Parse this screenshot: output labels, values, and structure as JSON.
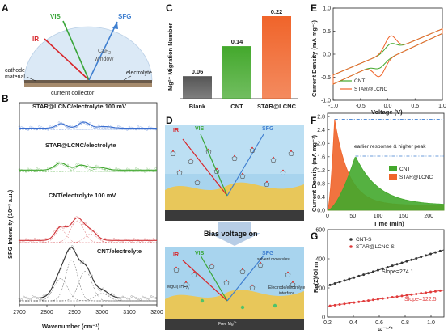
{
  "panels": {
    "A": {
      "letter": "A",
      "beam_labels": {
        "ir": "IR",
        "vis": "VIS",
        "sfg": "SFG"
      },
      "window_label_1": "CaF",
      "window_label_sub": "2",
      "window_label_2": "window",
      "cathode_label_1": "cathode",
      "cathode_label_2": "material",
      "electrolyte_label": "electrolyte",
      "collector_label": "current collector",
      "colors": {
        "ir": "#d8262b",
        "vis": "#3aa63a",
        "sfg": "#3f7fd0",
        "dome": "#dbe9f6"
      }
    },
    "B": {
      "letter": "B"
    },
    "C": {
      "letter": "C"
    },
    "D": {
      "letter": "D",
      "beam_labels": {
        "ir": "IR",
        "vis": "VIS",
        "sfg": "SFG"
      },
      "arrow_label": "Bias voltage on",
      "solvent_label": "solvent molecules",
      "species_label": "MgCl(THF)",
      "species_sub": "5",
      "species_sup": "+",
      "interface_label_1": "Electrode/electrolyte",
      "interface_label_2": "interface",
      "free_label": "Free Mg",
      "free_sup": "2+"
    },
    "E": {
      "letter": "E"
    },
    "F": {
      "letter": "F"
    },
    "G": {
      "letter": "G"
    }
  },
  "chart_data": [
    {
      "id": "B",
      "type": "line",
      "xlabel": "Wavenumber (cm⁻¹)",
      "ylabel": "SFG Intensity (10⁻³ a.u.)",
      "xlim": [
        2700,
        3200
      ],
      "xticks": [
        2700,
        2800,
        2900,
        3000,
        3100,
        3200
      ],
      "series": [
        {
          "name": "STAR@LCNC/electrolyte 100 mV",
          "color": "#3b6fd0",
          "offset": 0,
          "peaks": [
            [
              2852,
              0.55,
              18
            ],
            [
              2935,
              0.75,
              20
            ],
            [
              3010,
              0.2,
              25
            ]
          ]
        },
        {
          "name": "STAR@LCNC/electrolyte",
          "color": "#3fa62d",
          "offset": 1,
          "peaks": [
            [
              2850,
              0.8,
              22
            ],
            [
              2925,
              0.55,
              22
            ],
            [
              2990,
              0.3,
              25
            ]
          ]
        },
        {
          "name": "CNT/electrolyte 100 mV",
          "color": "#d0353a",
          "offset": 2,
          "peaks": [
            [
              2850,
              0.9,
              20
            ],
            [
              2910,
              1.5,
              24
            ],
            [
              2960,
              0.6,
              22
            ]
          ]
        },
        {
          "name": "CNT/electrolyte",
          "color": "#333333",
          "offset": 3,
          "peaks": [
            [
              2850,
              1.2,
              25
            ],
            [
              2890,
              2.2,
              22
            ],
            [
              2940,
              1.6,
              24
            ],
            [
              3000,
              0.4,
              25
            ]
          ]
        }
      ]
    },
    {
      "id": "C",
      "type": "bar",
      "ylabel": "Mg²⁺ Migration Number",
      "categories": [
        "Blank",
        "CNT",
        "STAR@LCNC"
      ],
      "values": [
        0.06,
        0.14,
        0.22
      ],
      "labels": [
        "0.06",
        "0.14",
        "0.22"
      ],
      "colors": [
        "#555555",
        "#43a82c",
        "#f0642a"
      ],
      "ylim": [
        0,
        0.22
      ]
    },
    {
      "id": "E",
      "type": "line",
      "xlabel": "Voltage (V)",
      "ylabel": "Current Density (mA mg⁻¹)",
      "xlim": [
        -1.0,
        1.0
      ],
      "ylim": [
        -1.0,
        1.0
      ],
      "xticks": [
        "-1.0",
        "-0.5",
        "0.0",
        "0.5",
        "1.0"
      ],
      "yticks": [
        "-1.0",
        "-0.5",
        "0.0",
        "0.5",
        "1.0"
      ],
      "series": [
        {
          "name": "CNT",
          "color": "#43a82c"
        },
        {
          "name": "STAR@LCNC",
          "color": "#f0642a"
        }
      ]
    },
    {
      "id": "F",
      "type": "area",
      "xlabel": "Time (min)",
      "ylabel": "Current Density (mA mg⁻¹)",
      "xlim": [
        0,
        230
      ],
      "ylim": [
        0,
        2.9
      ],
      "xticks": [
        0,
        50,
        100,
        150,
        200
      ],
      "yticks": [
        0.0,
        0.4,
        0.8,
        1.2,
        1.6,
        2.0,
        2.4,
        2.8
      ],
      "annotation": "earlier response & higher peak",
      "series": [
        {
          "name": "CNT",
          "color": "#43a82c",
          "peak_time": 55,
          "peak_value": 1.62
        },
        {
          "name": "STAR@LCNC",
          "color": "#f0642a",
          "peak_time": 14,
          "peak_value": 2.72
        }
      ]
    },
    {
      "id": "G",
      "type": "scatter",
      "xlabel": "ω⁻¹ᐟ²",
      "ylabel": "Re(Z)/Ohm",
      "xlim": [
        0.2,
        1.1
      ],
      "ylim": [
        0,
        600
      ],
      "xticks": [
        "0.2",
        "0.4",
        "0.6",
        "0.8",
        "1.0"
      ],
      "yticks": [
        "0",
        "200",
        "400",
        "600"
      ],
      "series": [
        {
          "name": "CNT-S",
          "color": "#333333",
          "slope_label": "Slope=274.1",
          "slope": 274.1,
          "intercept": 160
        },
        {
          "name": "STAR@LCNC-S",
          "color": "#e03a3a",
          "slope_label": "Slope=122.5",
          "slope": 122.5,
          "intercept": 50
        }
      ]
    }
  ]
}
